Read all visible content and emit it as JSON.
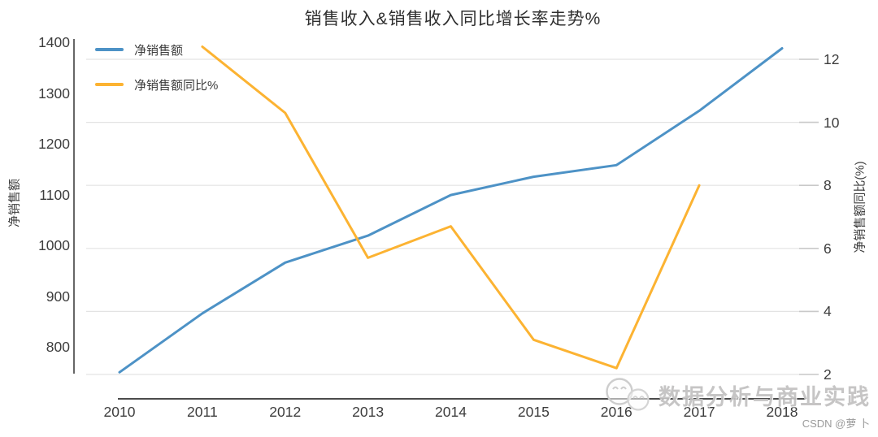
{
  "chart_data": {
    "type": "line",
    "title": "销售收入&销售收入同比增长率走势%",
    "categories": [
      "2010",
      "2011",
      "2012",
      "2013",
      "2014",
      "2015",
      "2016",
      "2017",
      "2018"
    ],
    "series": [
      {
        "name": "净销售额",
        "yaxis": "left",
        "color": "#4D92C6",
        "values": [
          750,
          866,
          966,
          1019,
          1099,
          1135,
          1158,
          1265,
          1388
        ]
      },
      {
        "name": "净销售额同比%",
        "yaxis": "right",
        "color": "#FCB332",
        "values": [
          null,
          12.4,
          10.3,
          5.7,
          6.7,
          3.1,
          2.2,
          8.0,
          null
        ]
      }
    ],
    "left_axis": {
      "label": "净销售额",
      "ticks": [
        1400,
        1300,
        1200,
        1100,
        1000,
        900,
        800
      ],
      "approx_range": [
        746,
        1406
      ]
    },
    "right_axis": {
      "label": "净销售额同比(%)",
      "ticks": [
        12,
        10,
        8,
        6,
        4,
        2
      ],
      "approx_range": [
        2,
        12.7
      ]
    },
    "legend_position": "top-left",
    "grid": "horizontal"
  },
  "watermark": {
    "icon": "wechat-emoji",
    "text": "数据分析与商业实践",
    "credit": "CSDN @萝 卜"
  },
  "colors": {
    "blue_series": "#4D92C6",
    "orange_series": "#FCB332",
    "grid": "#E3E3E3",
    "grid_tip": "#C9C9C9",
    "spine": "#4B4B4B",
    "text": "#3C3C3C",
    "watermark_text": "#C2C1C1"
  }
}
